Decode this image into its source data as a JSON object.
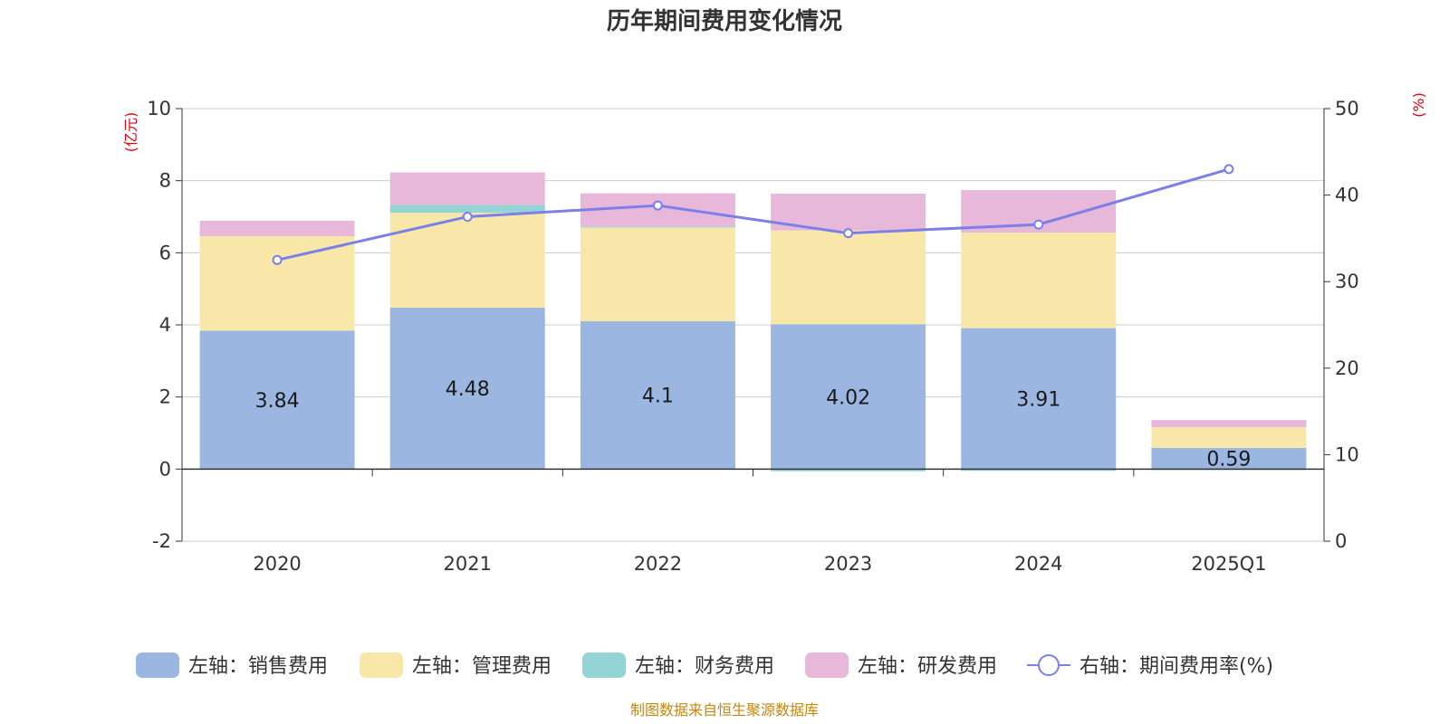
{
  "chart_data": {
    "type": "bar",
    "stacked": true,
    "title": "历年期间费用变化情况",
    "categories": [
      "2020",
      "2021",
      "2022",
      "2023",
      "2024",
      "2025Q1"
    ],
    "y_left": {
      "unit_label": "(亿元)",
      "ylim": [
        -2,
        10
      ],
      "ticks": [
        "10",
        "8",
        "6",
        "4",
        "2",
        "0",
        "-2"
      ]
    },
    "y_right": {
      "unit_label": "(%)",
      "ylim": [
        0,
        50
      ],
      "ticks": [
        "50",
        "40",
        "30",
        "20",
        "10",
        "0"
      ]
    },
    "series": [
      {
        "name": "左轴：销售费用",
        "axis": "left",
        "color": "#9bb7e1",
        "values": [
          3.84,
          4.48,
          4.1,
          4.02,
          3.91,
          0.59
        ],
        "labels": [
          "3.84",
          "4.48",
          "4.1",
          "4.02",
          "3.91",
          "0.59"
        ]
      },
      {
        "name": "左轴：管理费用",
        "axis": "left",
        "color": "#f8e7a8",
        "values": [
          2.62,
          2.63,
          2.6,
          2.6,
          2.65,
          0.57
        ]
      },
      {
        "name": "左轴：财务费用",
        "axis": "left",
        "color": "#95d4d4",
        "values": [
          0.0,
          0.22,
          0.03,
          -0.06,
          -0.05,
          -0.02
        ]
      },
      {
        "name": "左轴：研发费用",
        "axis": "left",
        "color": "#e7b8d9",
        "values": [
          0.43,
          0.9,
          0.92,
          1.02,
          1.18,
          0.2
        ]
      },
      {
        "name": "右轴：期间费用率(%)",
        "axis": "right",
        "type": "line",
        "color": "#7b7fe8",
        "values": [
          32.5,
          37.5,
          38.8,
          35.6,
          36.6,
          43.0
        ]
      }
    ]
  },
  "source_note": "制图数据来自恒生聚源数据库"
}
